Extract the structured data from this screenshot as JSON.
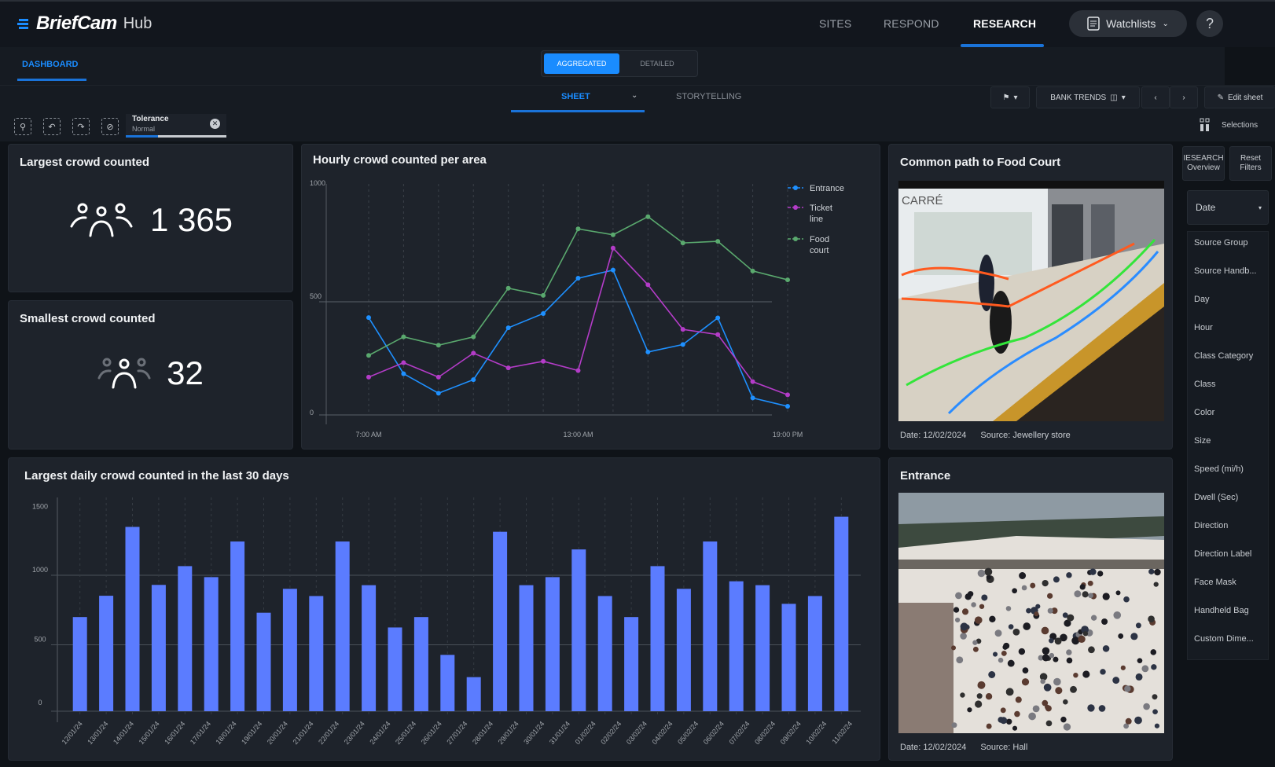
{
  "header": {
    "logo": "BriefCam",
    "product": "Hub",
    "nav": [
      "SITES",
      "RESPOND",
      "RESEARCH"
    ],
    "active_nav": "RESEARCH",
    "watchlists_label": "Watchlists",
    "help_label": "?"
  },
  "subnav": {
    "dashboard_tab": "DASHBOARD",
    "toggle": {
      "aggregated": "AGGREGATED",
      "detailed": "DETAILED",
      "selected": "AGGREGATED"
    },
    "sheet_tab": "SHEET",
    "storytelling_tab": "STORYTELLING",
    "sheet_name": "BANK TRENDS",
    "edit_sheet": "Edit sheet",
    "selections": "Selections"
  },
  "toolbar": {
    "tolerance_label": "Tolerance",
    "tolerance_value": "Normal",
    "tolerance_progress": 0.32
  },
  "kpis": [
    {
      "title": "Largest crowd counted",
      "value": "1 365"
    },
    {
      "title": "Smallest crowd counted",
      "value": "32"
    }
  ],
  "cameras": [
    {
      "title": "Common path to Food Court",
      "date": "Date: 12/02/2024",
      "source": "Source: Jewellery store",
      "sign": "CARRÉ"
    },
    {
      "title": "Entrance",
      "date": "Date: 12/02/2024",
      "source": "Source: Hall"
    }
  ],
  "sidebar": {
    "overview_btn": "IESEARCH Overview",
    "reset_btn": "Reset Filters",
    "date_dropdown": "Date",
    "filters": [
      "Source Group",
      "Source Handb...",
      "Day",
      "Hour",
      "Class Category",
      "Class",
      "Color",
      "Size",
      "Speed (mi/h)",
      "Dwell (Sec)",
      "Direction",
      "Direction Label",
      "Face Mask",
      "Handheld Bag",
      "Custom Dime..."
    ]
  },
  "chart_data": [
    {
      "type": "line",
      "title": "Hourly crowd counted per area",
      "x": [
        "7:00",
        "8:00",
        "9:00",
        "10:00",
        "11:00",
        "12:00",
        "13:00",
        "14:00",
        "15:00",
        "16:00",
        "17:00",
        "18:00",
        "19:00"
      ],
      "x_tick_labels": [
        "7:00 AM",
        "13:00 AM",
        "19:00 PM"
      ],
      "y_ticks": [
        "0",
        "500",
        "1000"
      ],
      "ylim": [
        0,
        1000
      ],
      "legend_position": "right",
      "series": [
        {
          "name": "Entrance",
          "color": "#1e90ff",
          "values": [
            430,
            182,
            96,
            156,
            385,
            448,
            604,
            640,
            278,
            311,
            429,
            75,
            38
          ]
        },
        {
          "name": "Ticket line",
          "color": "#b43cc8",
          "values": [
            167,
            231,
            167,
            273,
            208,
            237,
            196,
            737,
            575,
            378,
            355,
            147,
            89
          ]
        },
        {
          "name": "Food court",
          "color": "#5aa96e",
          "values": [
            263,
            345,
            308,
            345,
            560,
            528,
            822,
            796,
            876,
            760,
            767,
            636,
            597
          ]
        }
      ]
    },
    {
      "type": "bar",
      "title": "Largest daily crowd counted in the last 30 days",
      "color": "#5b7cff",
      "y_ticks": [
        "0",
        "500",
        "1000",
        "1500"
      ],
      "ylim": [
        0,
        1500
      ],
      "categories": [
        "12/01/24",
        "13/01/24",
        "14/01/24",
        "15/01/24",
        "16/01/24",
        "17/01/24",
        "18/01/24",
        "19/01/24",
        "20/01/24",
        "21/01/24",
        "22/01/24",
        "23/01/24",
        "24/01/24",
        "25/01/24",
        "26/01/24",
        "27/01/24",
        "28/01/24",
        "29/01/24",
        "30/01/24",
        "31/01/24",
        "01/02/24",
        "02/02/24",
        "03/02/24",
        "04/02/24",
        "05/02/24",
        "06/02/24",
        "07/02/24",
        "08/02/24",
        "09/02/24",
        "10/02/24",
        "11/02/24"
      ],
      "values": [
        677,
        830,
        1325,
        908,
        1043,
        964,
        1220,
        708,
        880,
        828,
        1220,
        906,
        602,
        677,
        405,
        245,
        null,
        1290,
        906,
        964,
        1163,
        828,
        677,
        1043,
        880,
        1220,
        934,
        906,
        772,
        828,
        1398
      ]
    }
  ]
}
